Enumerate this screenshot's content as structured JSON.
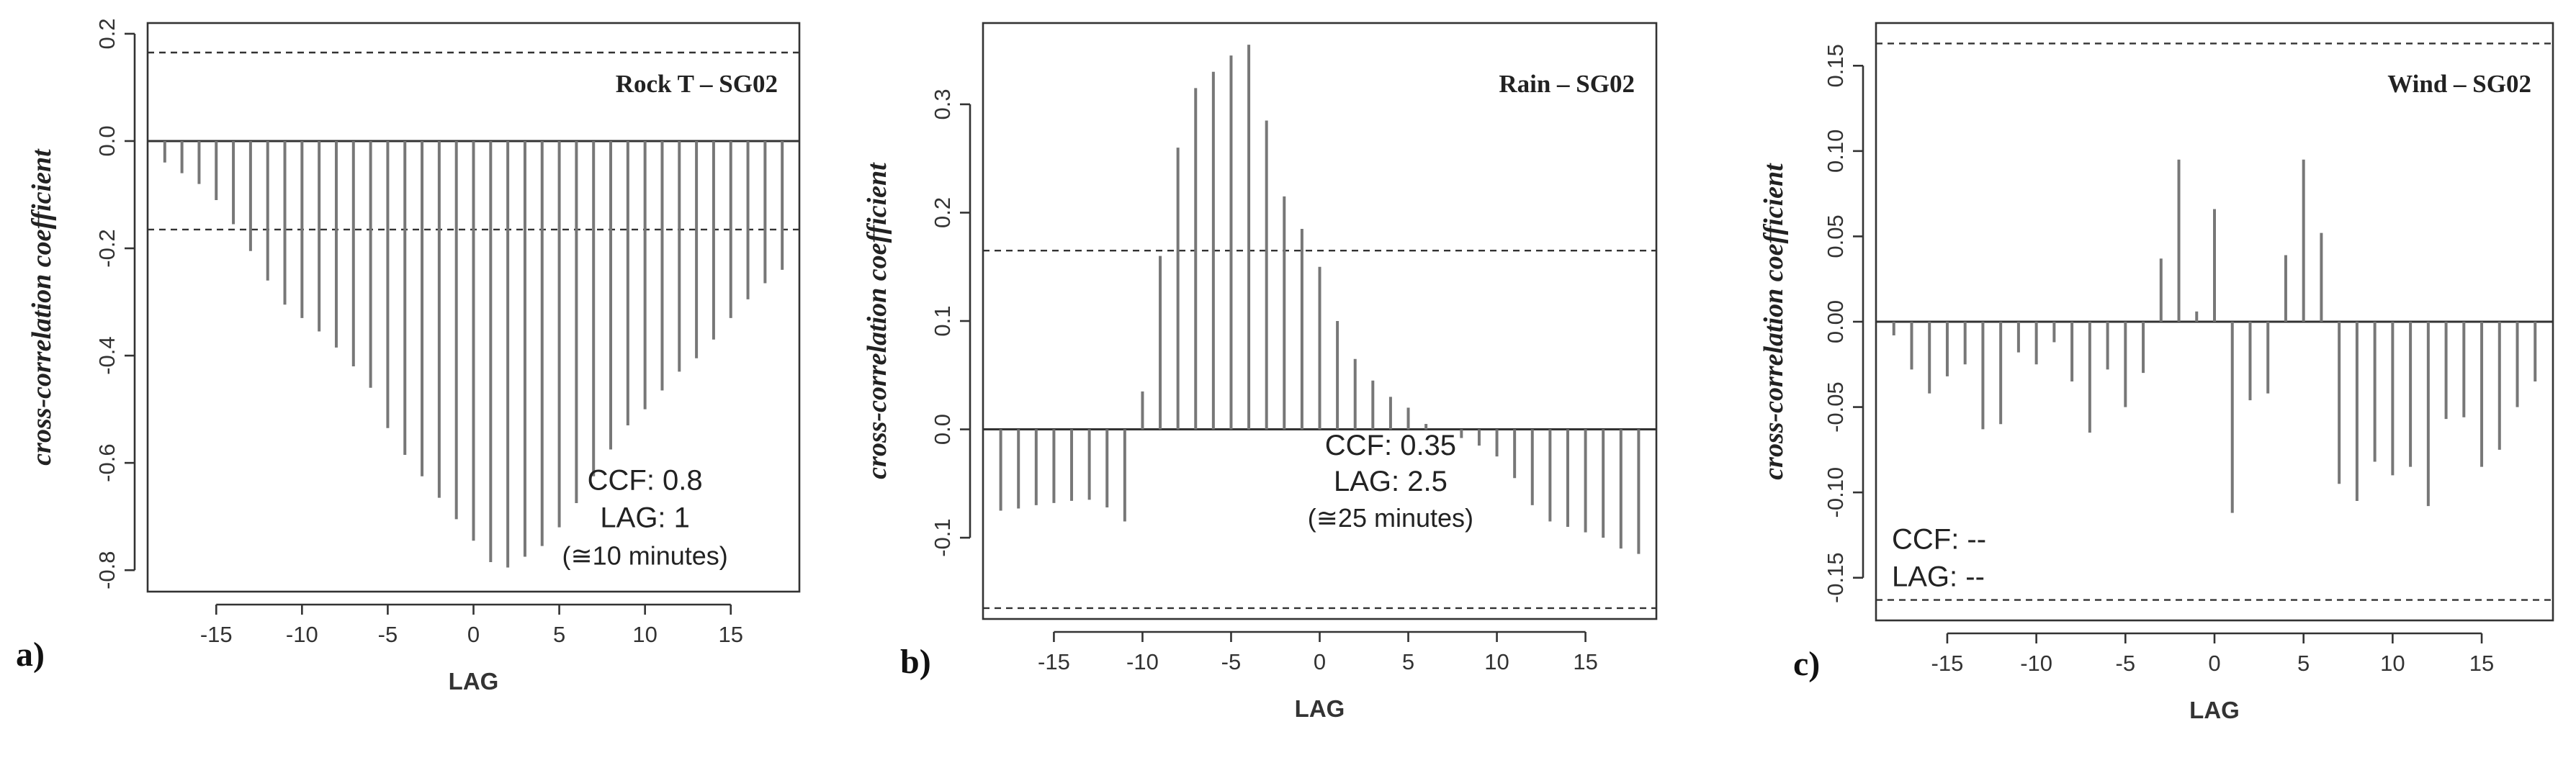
{
  "chart_data": [
    {
      "type": "bar",
      "panel": "a)",
      "title": "Rock T – SG02",
      "xlabel": "LAG",
      "ylabel": "cross-correlation coefficient",
      "xlim": [
        -19,
        19
      ],
      "ylim": [
        -0.84,
        0.22
      ],
      "xticks": [
        -15,
        -10,
        -5,
        0,
        5,
        10,
        15
      ],
      "yticks": [
        -0.8,
        -0.6,
        -0.4,
        -0.2,
        0.0,
        0.2
      ],
      "ytick_labels": [
        "-0.8",
        "-0.6",
        "-0.4",
        "-0.2",
        "0.0",
        "0.2"
      ],
      "conf_limits": [
        0.165,
        -0.165
      ],
      "annotation": [
        "CCF: 0.8",
        "LAG: 1",
        "(≅10 minutes)"
      ],
      "annotation_anchor": [
        10,
        -0.79
      ],
      "x": [
        -18,
        -17,
        -16,
        -15,
        -14,
        -13,
        -12,
        -11,
        -10,
        -9,
        -8,
        -7,
        -6,
        -5,
        -4,
        -3,
        -2,
        -1,
        0,
        1,
        2,
        3,
        4,
        5,
        6,
        7,
        8,
        9,
        10,
        11,
        12,
        13,
        14,
        15,
        16,
        17,
        18
      ],
      "values": [
        -0.04,
        -0.06,
        -0.08,
        -0.11,
        -0.155,
        -0.205,
        -0.26,
        -0.305,
        -0.33,
        -0.355,
        -0.385,
        -0.42,
        -0.46,
        -0.535,
        -0.585,
        -0.625,
        -0.665,
        -0.705,
        -0.745,
        -0.785,
        -0.795,
        -0.775,
        -0.755,
        -0.72,
        -0.675,
        -0.625,
        -0.575,
        -0.53,
        -0.5,
        -0.465,
        -0.43,
        -0.405,
        -0.37,
        -0.33,
        -0.295,
        -0.265,
        -0.24
      ]
    },
    {
      "type": "bar",
      "panel": "b)",
      "title": "Rain – SG02",
      "xlabel": "LAG",
      "ylabel": "cross-correlation coefficient",
      "xlim": [
        -19,
        19
      ],
      "ylim": [
        -0.175,
        0.375
      ],
      "xticks": [
        -15,
        -10,
        -5,
        0,
        5,
        10,
        15
      ],
      "yticks": [
        -0.1,
        0.0,
        0.1,
        0.2,
        0.3
      ],
      "ytick_labels": [
        "-0.1",
        "0.0",
        "0.1",
        "0.2",
        "0.3"
      ],
      "conf_limits": [
        0.165,
        -0.165
      ],
      "annotation": [
        "CCF: 0.35",
        "LAG: 2.5",
        "(≅25 minutes)"
      ],
      "annotation_anchor": [
        4,
        -0.09
      ],
      "x": [
        -18,
        -17,
        -16,
        -15,
        -14,
        -13,
        -12,
        -11,
        -10,
        -9,
        -8,
        -7,
        -6,
        -5,
        -4,
        -3,
        -2,
        -1,
        0,
        1,
        2,
        3,
        4,
        5,
        6,
        7,
        8,
        9,
        10,
        11,
        12,
        13,
        14,
        15,
        16,
        17,
        18
      ],
      "values": [
        -0.075,
        -0.073,
        -0.07,
        -0.068,
        -0.066,
        -0.065,
        -0.072,
        -0.085,
        0.035,
        0.16,
        0.26,
        0.315,
        0.33,
        0.345,
        0.355,
        0.285,
        0.215,
        0.185,
        0.15,
        0.1,
        0.065,
        0.045,
        0.03,
        0.02,
        0.005,
        0.0,
        -0.008,
        -0.015,
        -0.025,
        -0.045,
        -0.07,
        -0.085,
        -0.09,
        -0.095,
        -0.1,
        -0.11,
        -0.115
      ]
    },
    {
      "type": "bar",
      "panel": "c)",
      "title": "Wind – SG02",
      "xlabel": "LAG",
      "ylabel": "cross-correlation coefficient",
      "xlim": [
        -19,
        19
      ],
      "ylim": [
        -0.175,
        0.175
      ],
      "xticks": [
        -15,
        -10,
        -5,
        0,
        5,
        10,
        15
      ],
      "yticks": [
        -0.15,
        -0.1,
        -0.05,
        0.0,
        0.05,
        0.1,
        0.15
      ],
      "ytick_labels": [
        "-0.15",
        "-0.10",
        "-0.05",
        "0.00",
        "0.05",
        "0.10",
        "0.15"
      ],
      "conf_limits": [
        0.163,
        -0.163
      ],
      "annotation": [
        "CCF: --",
        "LAG: --"
      ],
      "annotation_anchor": [
        -18.5,
        -0.155
      ],
      "x": [
        -18,
        -17,
        -16,
        -15,
        -14,
        -13,
        -12,
        -11,
        -10,
        -9,
        -8,
        -7,
        -6,
        -5,
        -4,
        -3,
        -2,
        -1,
        0,
        1,
        2,
        3,
        4,
        5,
        6,
        7,
        8,
        9,
        10,
        11,
        12,
        13,
        14,
        15,
        16,
        17,
        18
      ],
      "values": [
        -0.008,
        -0.028,
        -0.042,
        -0.032,
        -0.025,
        -0.063,
        -0.06,
        -0.018,
        -0.025,
        -0.012,
        -0.035,
        -0.065,
        -0.028,
        -0.05,
        -0.03,
        0.037,
        0.095,
        0.006,
        0.066,
        -0.112,
        -0.046,
        -0.042,
        0.039,
        0.095,
        0.052,
        -0.095,
        -0.105,
        -0.082,
        -0.09,
        -0.085,
        -0.108,
        -0.057,
        -0.056,
        -0.085,
        -0.075,
        -0.05,
        -0.035
      ]
    }
  ]
}
